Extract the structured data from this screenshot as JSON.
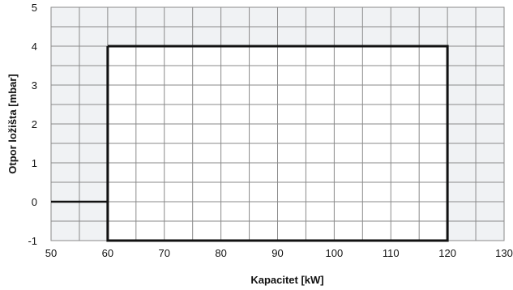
{
  "chart_data": {
    "type": "line",
    "title": "",
    "xlabel": "Kapacitet [kW]",
    "ylabel": "Otpor ložišta  [mbar]",
    "xlim": [
      50,
      130
    ],
    "ylim": [
      -1,
      5
    ],
    "x_ticks": [
      50,
      60,
      70,
      80,
      90,
      100,
      110,
      120,
      130
    ],
    "y_ticks": [
      -1,
      0,
      1,
      2,
      3,
      4,
      5
    ],
    "grid": true,
    "minor_x_step": 5,
    "minor_y_step": 0.5,
    "legend": "none",
    "series": [
      {
        "x": [
          60,
          120,
          120,
          60,
          60
        ],
        "y": [
          4,
          4,
          -1,
          -1,
          4
        ]
      }
    ],
    "reference_lines": [
      {
        "axis": "y",
        "value": 0,
        "from_x": 50,
        "to_x": 60
      }
    ],
    "colors": {
      "outside_fill": "#f0f2f4",
      "inside_fill": "#ffffff",
      "grid": "#8a8a8a",
      "series": "#111111"
    }
  }
}
